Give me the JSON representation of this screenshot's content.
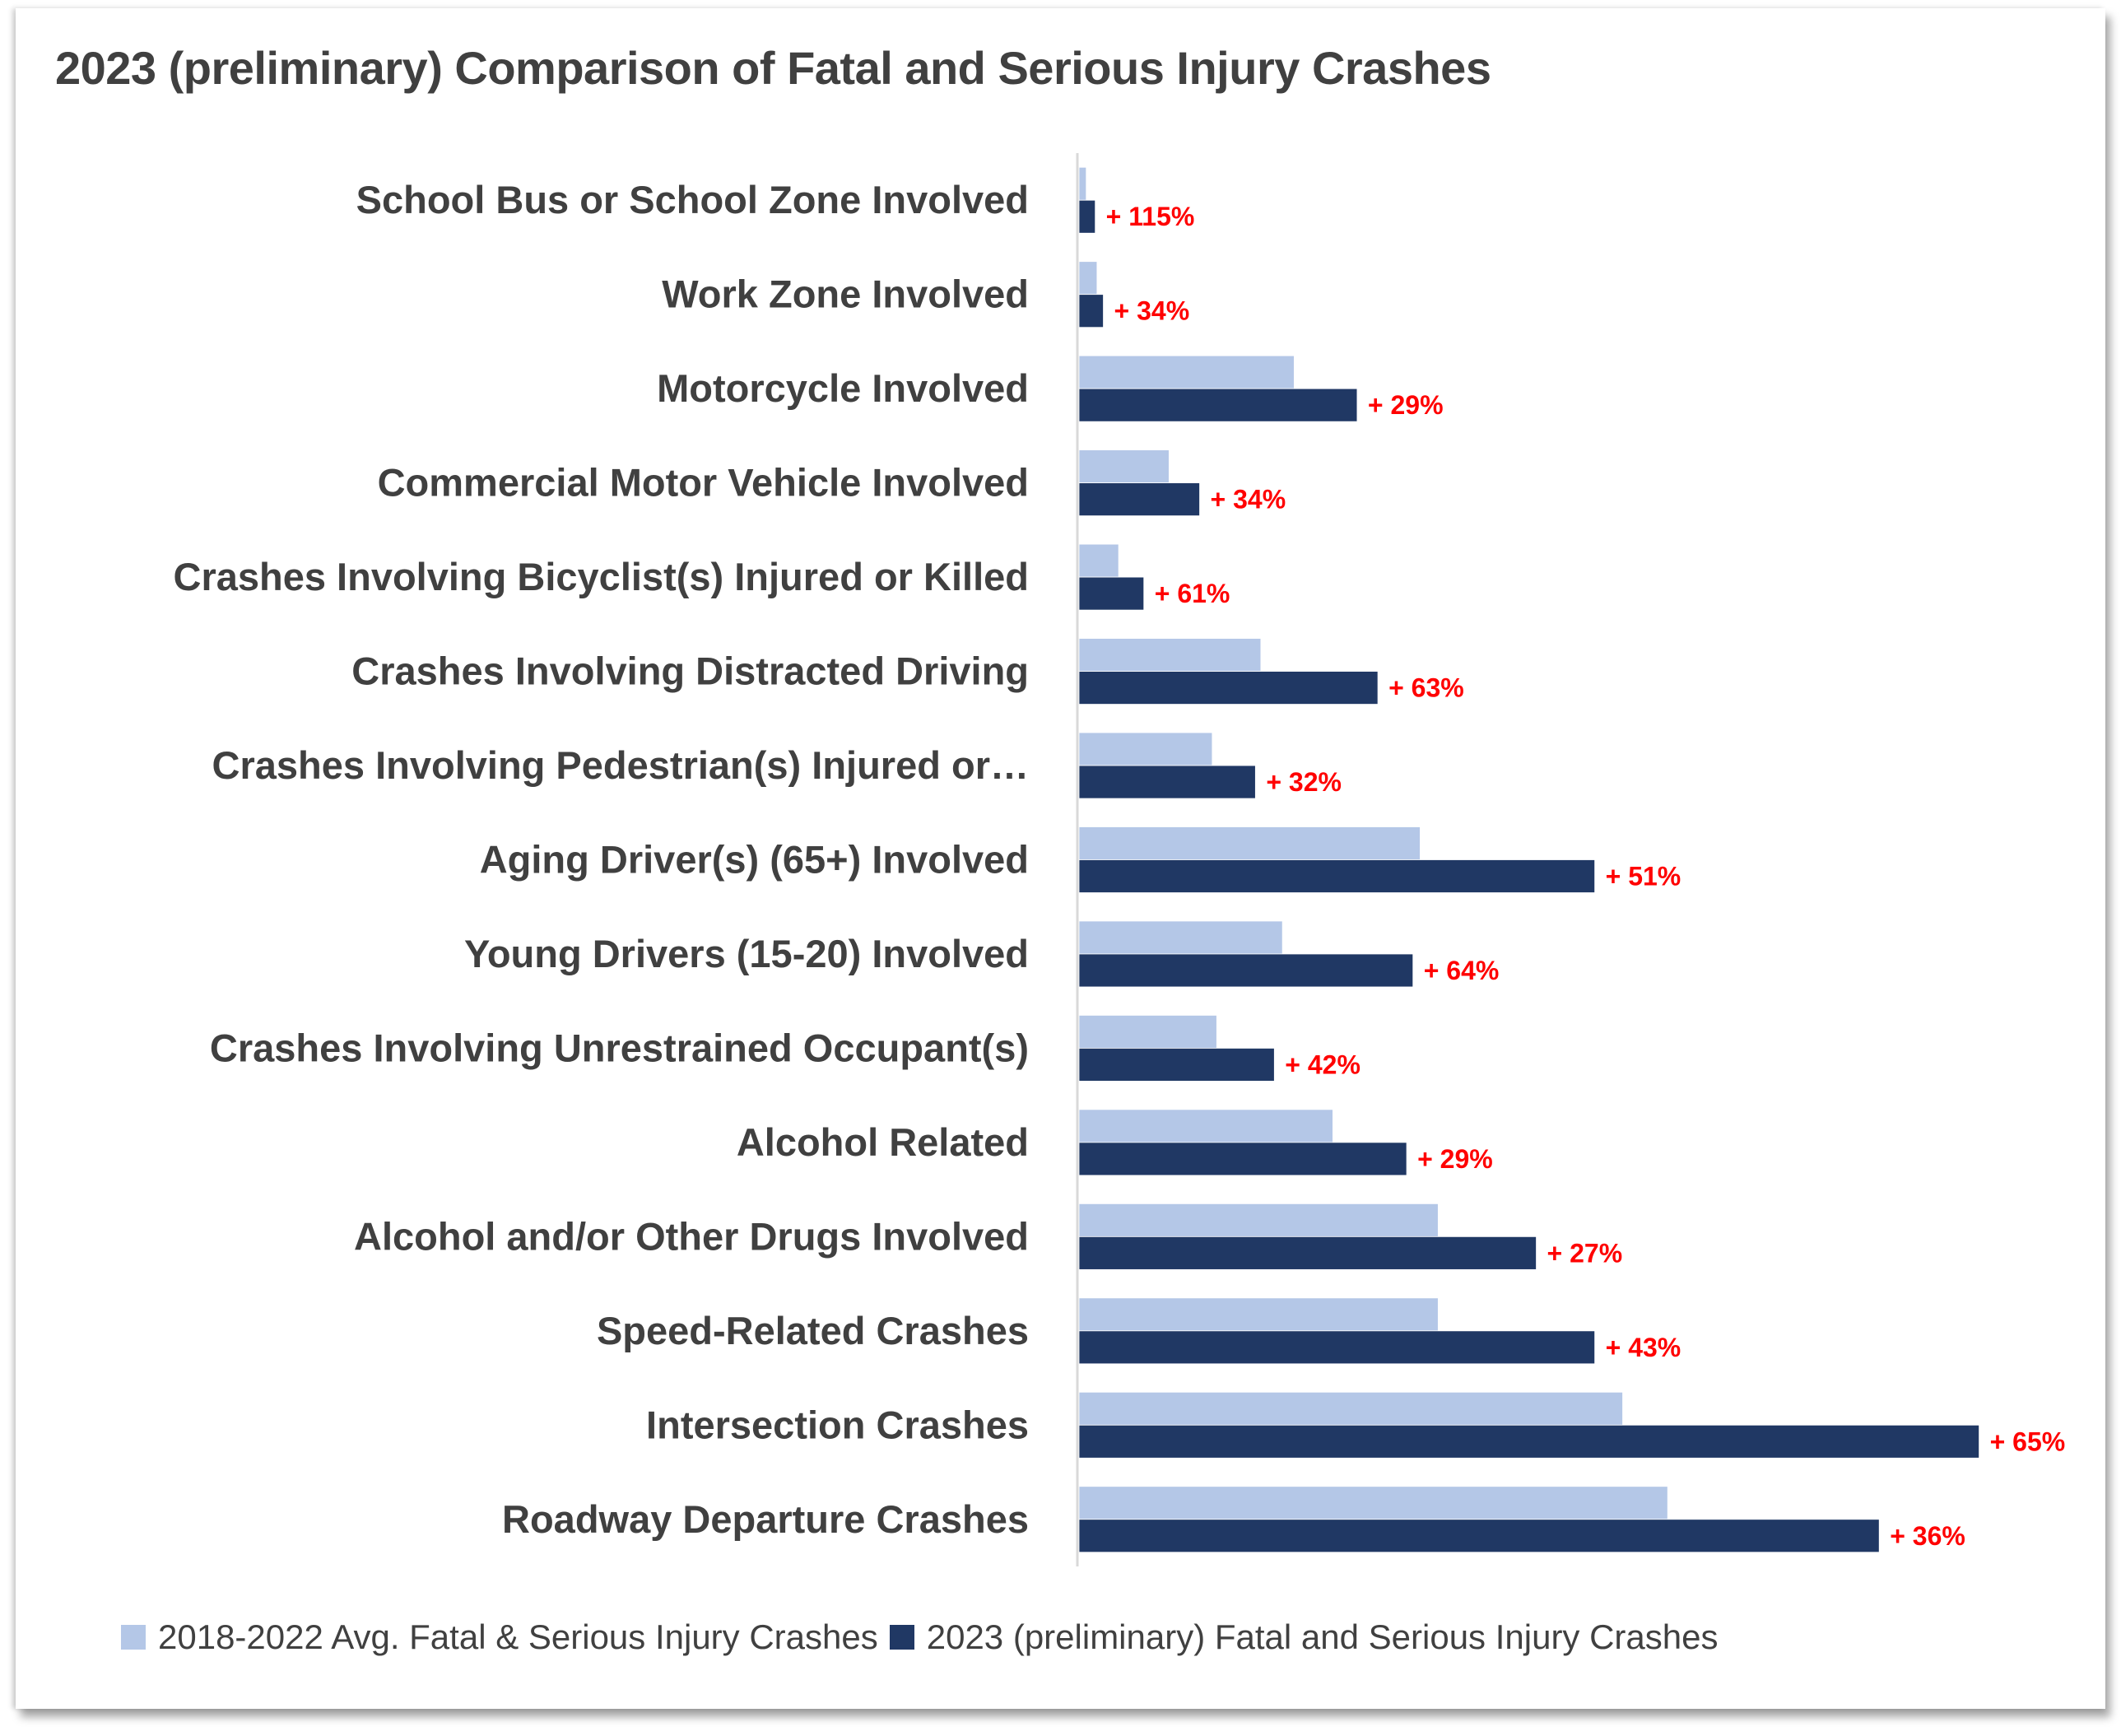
{
  "chart_data": {
    "type": "bar",
    "orientation": "horizontal",
    "title": "2023 (preliminary) Comparison of Fatal and Serious Injury Crashes",
    "xlabel": "",
    "ylabel": "",
    "x_axis_tick_labels_shown": false,
    "value_units": "relative index (2023 Intersection Crashes = 100), estimated from bar lengths; no axis scale printed",
    "xlim": [
      0,
      101.5
    ],
    "grid": false,
    "legend_position": "bottom",
    "categories": [
      "School Bus or School Zone Involved",
      "Work Zone Involved",
      "Motorcycle Involved",
      "Commercial Motor Vehicle Involved",
      "Crashes Involving Bicyclist(s) Injured or Killed",
      "Crashes Involving Distracted Driving",
      "Crashes Involving Pedestrian(s) Injured or…",
      "Aging Driver(s) (65+) Involved",
      "Young Drivers (15-20) Involved ",
      "Crashes Involving Unrestrained Occupant(s)",
      "Alcohol Related",
      "Alcohol and/or Other Drugs Involved",
      "Speed-Related Crashes",
      "Intersection Crashes",
      "Roadway Departure Crashes"
    ],
    "series": [
      {
        "name": "2018-2022 Avg. Fatal & Serious Injury Crashes",
        "color": "#b4c7e7",
        "values": [
          0.8,
          2.0,
          23.9,
          10.0,
          4.4,
          20.2,
          14.8,
          37.9,
          22.6,
          15.3,
          28.2,
          39.9,
          39.9,
          60.4,
          65.4
        ]
      },
      {
        "name": "2023 (preliminary) Fatal and Serious Injury Crashes",
        "color": "#203864",
        "values": [
          1.8,
          2.7,
          30.9,
          13.4,
          7.2,
          33.2,
          19.6,
          57.3,
          37.1,
          21.7,
          36.4,
          50.8,
          57.3,
          100.0,
          88.9
        ]
      }
    ],
    "data_labels": [
      "+ 115%",
      "+ 34%",
      "+ 29%",
      "+ 34%",
      "+ 61%",
      "+ 63%",
      "+ 32%",
      "+ 51%",
      "+ 64%",
      "+ 42%",
      "+ 29%",
      "+ 27%",
      "+ 43%",
      "+ 65%",
      "+ 36%"
    ],
    "data_label_color": "#ff0000"
  },
  "legend": {
    "items": [
      {
        "label": "2018-2022 Avg. Fatal & Serious Injury Crashes",
        "color": "#b4c7e7"
      },
      {
        "label": "2023 (preliminary) Fatal and Serious Injury Crashes",
        "color": "#203864"
      }
    ]
  }
}
